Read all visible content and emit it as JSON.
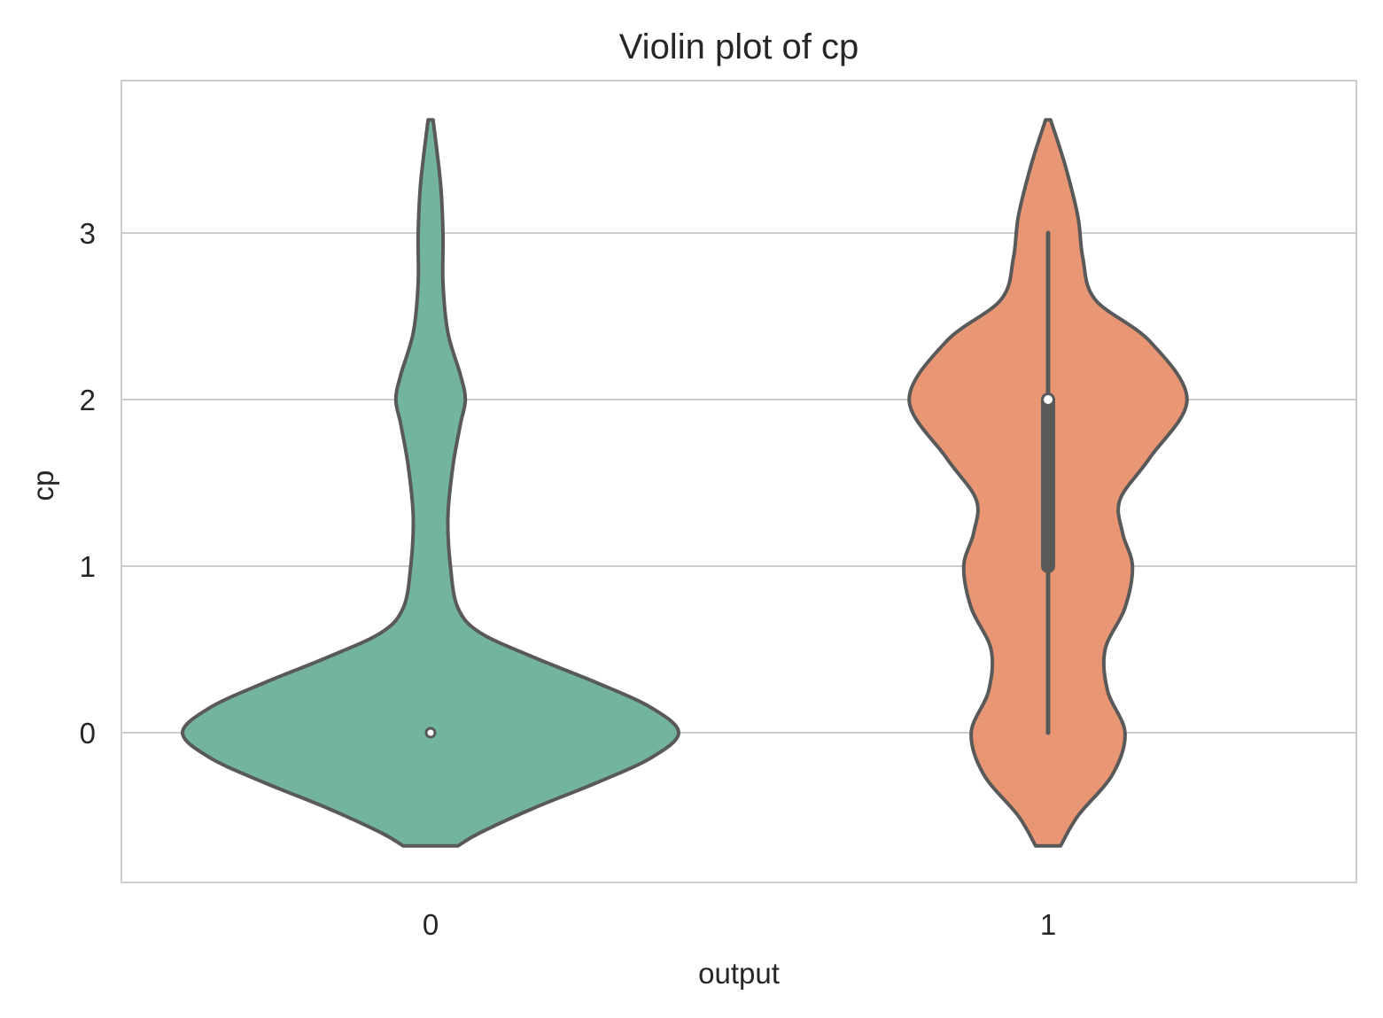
{
  "chart_data": {
    "type": "violin",
    "title": "Violin plot of cp",
    "xlabel": "output",
    "ylabel": "cp",
    "categories": [
      "0",
      "1"
    ],
    "yticks": [
      "0",
      "1",
      "2",
      "3"
    ],
    "ylim": [
      -0.9,
      3.9
    ],
    "grid": true,
    "legend": "none",
    "violin_range": [
      -0.68,
      3.68
    ],
    "series": [
      {
        "category": "0",
        "color": "#73b4a1",
        "median": 0,
        "q1": 0,
        "q3": 0,
        "whisker_low": 0,
        "whisker_high": 0,
        "density_width": [
          [
            -0.68,
            0.11
          ],
          [
            -0.6,
            0.2
          ],
          [
            -0.45,
            0.42
          ],
          [
            -0.3,
            0.67
          ],
          [
            -0.15,
            0.89
          ],
          [
            0.0,
            1.0
          ],
          [
            0.15,
            0.89
          ],
          [
            0.3,
            0.67
          ],
          [
            0.45,
            0.42
          ],
          [
            0.6,
            0.2
          ],
          [
            0.75,
            0.11
          ],
          [
            1.0,
            0.08
          ],
          [
            1.3,
            0.07
          ],
          [
            1.6,
            0.09
          ],
          [
            1.85,
            0.12
          ],
          [
            2.0,
            0.14
          ],
          [
            2.15,
            0.12
          ],
          [
            2.4,
            0.07
          ],
          [
            2.7,
            0.05
          ],
          [
            3.0,
            0.05
          ],
          [
            3.3,
            0.04
          ],
          [
            3.68,
            0.01
          ]
        ]
      },
      {
        "category": "1",
        "color": "#e89674",
        "median": 2,
        "q1": 1,
        "q3": 2,
        "whisker_low": 0,
        "whisker_high": 3,
        "density_width": [
          [
            -0.68,
            0.05
          ],
          [
            -0.5,
            0.12
          ],
          [
            -0.25,
            0.26
          ],
          [
            0.0,
            0.31
          ],
          [
            0.25,
            0.24
          ],
          [
            0.5,
            0.23
          ],
          [
            0.75,
            0.31
          ],
          [
            1.0,
            0.34
          ],
          [
            1.2,
            0.3
          ],
          [
            1.4,
            0.29
          ],
          [
            1.65,
            0.41
          ],
          [
            2.0,
            0.56
          ],
          [
            2.35,
            0.41
          ],
          [
            2.6,
            0.19
          ],
          [
            2.85,
            0.14
          ],
          [
            3.1,
            0.12
          ],
          [
            3.4,
            0.07
          ],
          [
            3.68,
            0.01
          ]
        ]
      }
    ]
  }
}
